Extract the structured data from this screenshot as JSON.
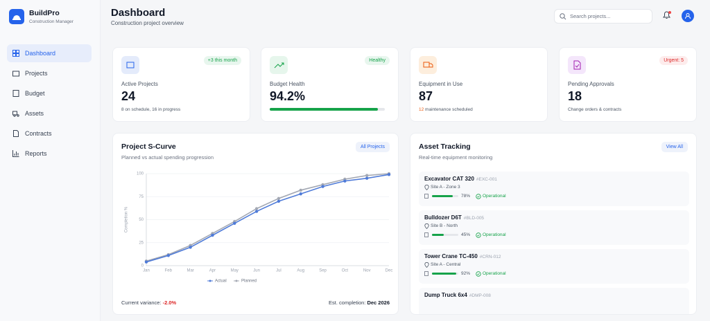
{
  "sidebar": {
    "brand": "BuildPro",
    "tagline": "Construction Manager",
    "nav": [
      "Dashboard",
      "Projects",
      "Budget",
      "Assets",
      "Contracts",
      "Reports"
    ]
  },
  "header": {
    "title": "Dashboard",
    "subtitle": "Construction project overview",
    "search_placeholder": "Search projects..."
  },
  "stats": [
    {
      "label": "Active Projects",
      "value": 24,
      "badge": "+3 this month",
      "note": "8 on schedule, 16 in progress"
    },
    {
      "label": "Budget Health",
      "value": {
        "value": 94.2,
        "label": "94.2%"
      },
      "badge": "Healthy"
    },
    {
      "label": "Equipment in Use",
      "value": 87,
      "note_highlight": "12",
      "note": "maintenance scheduled"
    },
    {
      "label": "Pending Approvals",
      "value": 18,
      "badge": "Urgent: 5",
      "note": "Change orders & contracts"
    }
  ],
  "chart_data": {
    "type": "line",
    "title": "Project S-Curve",
    "subtitle": "Planned vs actual spending progression",
    "ylabel": "Completion %",
    "categories": [
      "Jan",
      "Feb",
      "Mar",
      "Apr",
      "May",
      "Jun",
      "Jul",
      "Aug",
      "Sep",
      "Oct",
      "Nov",
      "Dec"
    ],
    "series": [
      {
        "name": "Actual",
        "color": "#4f7bd8",
        "values": [
          4,
          11,
          20,
          33,
          46,
          59,
          70,
          78,
          86,
          92,
          95,
          99
        ]
      },
      {
        "name": "Planned",
        "color": "#a3a8b3",
        "values": [
          5,
          12,
          22,
          35,
          48,
          62,
          73,
          82,
          88,
          94,
          98,
          100
        ]
      }
    ],
    "ylim": [
      0,
      100
    ],
    "yticks": [
      0,
      25,
      50,
      75,
      100
    ],
    "grid": true,
    "legend": "bottom"
  },
  "s_curve_card": {
    "button": "All Projects",
    "variance_label": "Current variance:",
    "variance": "-2.0%",
    "completion_label": "Est. completion:",
    "completion": "Dec 2026"
  },
  "assets": {
    "title": "Asset Tracking",
    "subtitle": "Real-time equipment monitoring",
    "button": "View All",
    "items": [
      {
        "name": "Excavator CAT 320",
        "id": "#EXC-001",
        "location": "Site A - Zone 3",
        "level": {
          "value": 78,
          "label": "78%"
        },
        "status": "Operational"
      },
      {
        "name": "Bulldozer D6T",
        "id": "#BLD-005",
        "location": "Site B - North",
        "level": {
          "value": 45,
          "label": "45%"
        },
        "status": "Operational"
      },
      {
        "name": "Tower Crane TC-450",
        "id": "#CRN-012",
        "location": "Site A - Central",
        "level": {
          "value": 92,
          "label": "92%"
        },
        "status": "Operational"
      },
      {
        "name": "Dump Truck 6x4",
        "id": "#DMP-008"
      }
    ]
  }
}
